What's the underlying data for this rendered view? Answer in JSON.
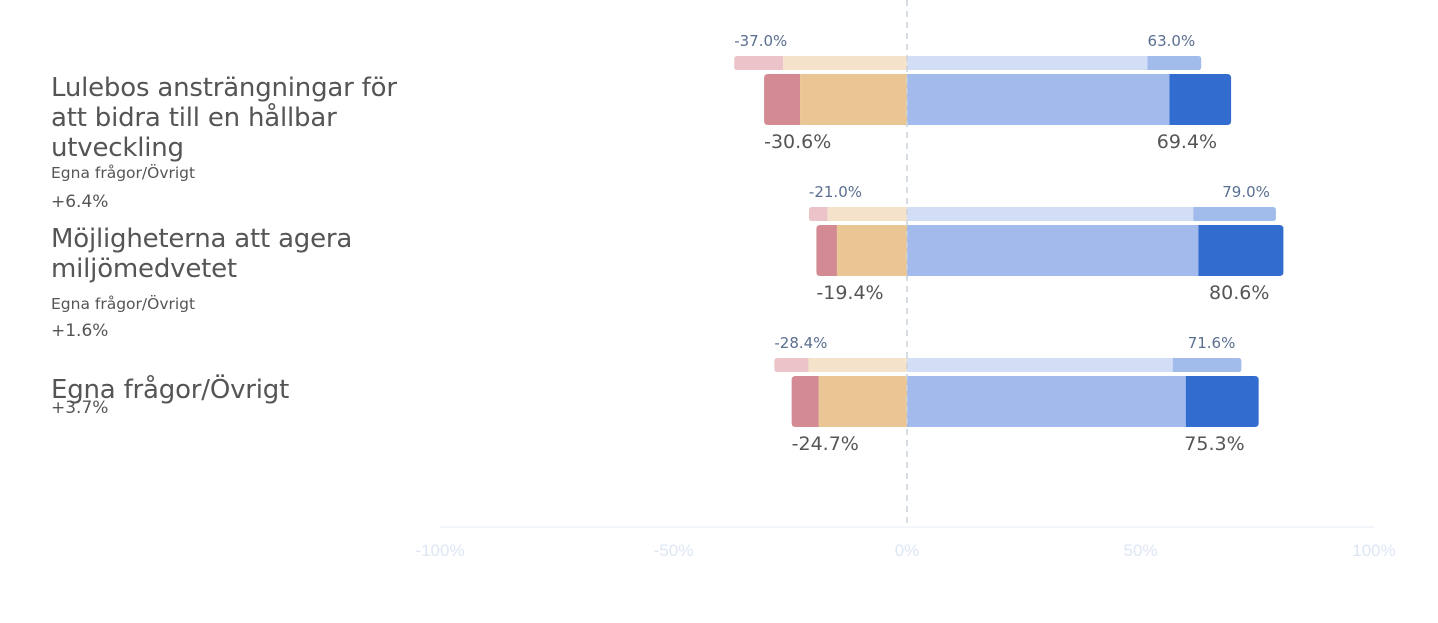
{
  "chart_data": {
    "type": "bar",
    "orientation": "horizontal-diverging",
    "xlim": [
      -100,
      100
    ],
    "x_ticks": [
      "-100%",
      "-50%",
      "0%",
      "50%",
      "100%"
    ],
    "x_tick_values": [
      -100,
      -50,
      0,
      50,
      100
    ],
    "colors": {
      "neg_strong": "#d38a92",
      "neg_weak": "#ebc695",
      "pos_weak": "#a2bbec",
      "pos_strong": "#326ccf",
      "ref_neg_strong": "#ebc3c8",
      "ref_neg_weak": "#f5e2ca",
      "ref_pos_weak": "#d2def6",
      "ref_pos_strong": "#a1bbeb",
      "ref_label": "#5a6f91",
      "label": "#555555",
      "tick": "#dde6f5",
      "axis": "#e6ecf4",
      "zero_line": "#c9d1dc"
    },
    "rows": [
      {
        "title": "Lulebos ansträngningar för att bidra till en hållbar utveckling",
        "subtitle": "Egna frågor/Övrigt",
        "delta": "+6.4%",
        "current": {
          "neg_strong": 7.7,
          "neg_weak": 22.9,
          "pos_weak": 56.2,
          "pos_strong": 13.2,
          "neg_label": "-30.6%",
          "pos_label": "69.4%"
        },
        "reference": {
          "neg_strong": 10.5,
          "neg_weak": 26.5,
          "pos_weak": 51.5,
          "pos_strong": 11.5,
          "neg_label": "-37.0%",
          "pos_label": "63.0%"
        }
      },
      {
        "title": "Möjligheterna att agera miljömedvetet",
        "subtitle": "Egna frågor/Övrigt",
        "delta": "+1.6%",
        "current": {
          "neg_strong": 4.4,
          "neg_weak": 15.0,
          "pos_weak": 62.4,
          "pos_strong": 18.2,
          "neg_label": "-19.4%",
          "pos_label": "80.6%"
        },
        "reference": {
          "neg_strong": 4.0,
          "neg_weak": 17.0,
          "pos_weak": 61.3,
          "pos_strong": 17.7,
          "neg_label": "-21.0%",
          "pos_label": "79.0%"
        }
      },
      {
        "title": "Egna frågor/Övrigt",
        "subtitle": "",
        "delta": "+3.7%",
        "current": {
          "neg_strong": 5.8,
          "neg_weak": 18.9,
          "pos_weak": 59.7,
          "pos_strong": 15.6,
          "neg_label": "-24.7%",
          "pos_label": "75.3%"
        },
        "reference": {
          "neg_strong": 7.3,
          "neg_weak": 21.1,
          "pos_weak": 56.9,
          "pos_strong": 14.7,
          "neg_label": "-28.4%",
          "pos_label": "71.6%"
        }
      }
    ]
  }
}
